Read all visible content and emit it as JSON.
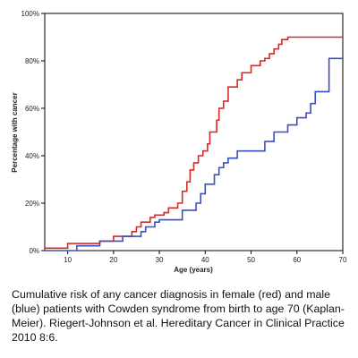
{
  "chart_data": {
    "type": "line",
    "xlabel": "Age (years)",
    "ylabel": "Percentage with cancer",
    "xlim": [
      5,
      70
    ],
    "ylim": [
      0,
      100
    ],
    "x_ticks": [
      10,
      20,
      30,
      40,
      50,
      60,
      70
    ],
    "y_ticks": [
      0,
      20,
      40,
      60,
      80,
      100
    ],
    "y_tick_labels": [
      "0%",
      "20%",
      "40%",
      "60%",
      "80%",
      "100%"
    ],
    "grid": false,
    "legend": "none",
    "step": true,
    "series": [
      {
        "color": "#d42a2a",
        "points": [
          [
            5,
            0
          ],
          [
            5,
            1
          ],
          [
            10,
            1
          ],
          [
            10,
            3
          ],
          [
            17,
            3
          ],
          [
            17,
            4
          ],
          [
            20,
            4
          ],
          [
            20,
            6
          ],
          [
            24,
            6
          ],
          [
            24,
            8
          ],
          [
            25,
            8
          ],
          [
            25,
            10
          ],
          [
            26,
            10
          ],
          [
            26,
            12
          ],
          [
            28,
            12
          ],
          [
            28,
            14
          ],
          [
            29,
            14
          ],
          [
            29,
            15
          ],
          [
            31,
            15
          ],
          [
            31,
            16
          ],
          [
            32,
            16
          ],
          [
            32,
            18
          ],
          [
            34,
            18
          ],
          [
            34,
            20
          ],
          [
            35,
            20
          ],
          [
            35,
            25
          ],
          [
            36,
            25
          ],
          [
            36,
            29
          ],
          [
            36.7,
            29
          ],
          [
            36.7,
            34
          ],
          [
            37.5,
            34
          ],
          [
            37.5,
            37
          ],
          [
            38.5,
            37
          ],
          [
            38.5,
            40
          ],
          [
            39.5,
            40
          ],
          [
            39.5,
            42
          ],
          [
            40.5,
            42
          ],
          [
            40.5,
            45
          ],
          [
            41,
            45
          ],
          [
            41,
            50
          ],
          [
            42.5,
            50
          ],
          [
            42.5,
            55
          ],
          [
            43,
            55
          ],
          [
            43,
            60
          ],
          [
            44,
            60
          ],
          [
            44,
            63
          ],
          [
            45,
            63
          ],
          [
            45,
            69
          ],
          [
            47,
            69
          ],
          [
            47,
            72
          ],
          [
            48,
            72
          ],
          [
            48,
            75
          ],
          [
            50,
            75
          ],
          [
            50,
            78
          ],
          [
            52,
            78
          ],
          [
            52,
            80
          ],
          [
            53,
            80
          ],
          [
            53,
            81
          ],
          [
            54,
            81
          ],
          [
            54,
            83
          ],
          [
            55,
            83
          ],
          [
            55,
            85
          ],
          [
            56,
            85
          ],
          [
            56,
            87
          ],
          [
            56.7,
            87
          ],
          [
            56.7,
            89
          ],
          [
            58,
            89
          ],
          [
            58,
            90
          ],
          [
            70,
            90
          ]
        ]
      },
      {
        "color": "#3a4fc2",
        "points": [
          [
            5,
            0
          ],
          [
            12,
            0
          ],
          [
            12,
            2
          ],
          [
            17,
            2
          ],
          [
            17,
            4
          ],
          [
            22,
            4
          ],
          [
            22,
            6
          ],
          [
            26,
            6
          ],
          [
            26,
            8
          ],
          [
            27,
            8
          ],
          [
            27,
            10
          ],
          [
            29,
            10
          ],
          [
            29,
            12
          ],
          [
            30,
            12
          ],
          [
            30,
            13
          ],
          [
            35,
            13
          ],
          [
            35,
            17
          ],
          [
            38,
            17
          ],
          [
            38,
            20
          ],
          [
            39,
            20
          ],
          [
            39,
            24
          ],
          [
            40,
            24
          ],
          [
            40,
            28
          ],
          [
            42,
            28
          ],
          [
            42,
            32
          ],
          [
            43,
            32
          ],
          [
            43,
            35
          ],
          [
            44,
            35
          ],
          [
            44,
            37
          ],
          [
            45,
            37
          ],
          [
            45,
            39
          ],
          [
            47,
            39
          ],
          [
            47,
            42
          ],
          [
            53,
            42
          ],
          [
            53,
            46
          ],
          [
            55,
            46
          ],
          [
            55,
            50
          ],
          [
            58,
            50
          ],
          [
            58,
            53
          ],
          [
            60,
            53
          ],
          [
            60,
            56
          ],
          [
            62,
            56
          ],
          [
            62,
            58
          ],
          [
            63,
            58
          ],
          [
            63,
            62
          ],
          [
            64,
            62
          ],
          [
            64,
            67
          ],
          [
            67,
            67
          ],
          [
            67,
            81
          ],
          [
            70,
            81
          ]
        ]
      }
    ]
  },
  "caption": "Cumulative risk of any cancer diagnosis in female (red) and male (blue) patients with Cowden syndrome from birth to age 70 (Kaplan-Meier). Riegert-Johnson et al. Hereditary Cancer in Clinical Practice 2010 8:6."
}
